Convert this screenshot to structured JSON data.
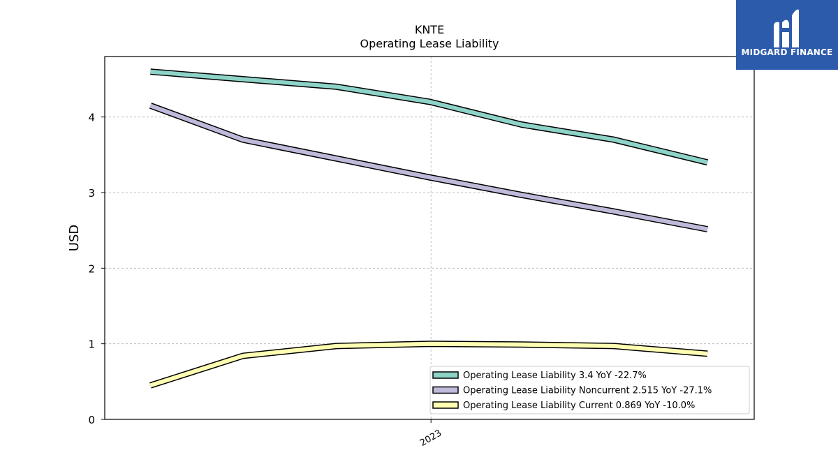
{
  "brand": {
    "name": "MIDGARD FINANCE",
    "color": "#2d5bab"
  },
  "chart_data": {
    "type": "line",
    "title": "KNTE",
    "subtitle": "Operating Lease Liability",
    "ylabel": "USD",
    "xlabel": "",
    "ylim": [
      0,
      4.8
    ],
    "yticks": [
      0,
      1,
      2,
      3,
      4
    ],
    "xtick_labels": [
      "2023"
    ],
    "grid": true,
    "legend_position": "lower-right",
    "x": [
      "2022-03-31",
      "2022-06-30",
      "2022-09-30",
      "2022-12-31",
      "2023-03-31",
      "2023-06-30",
      "2023-09-30"
    ],
    "series": [
      {
        "name": "Operating Lease Liability",
        "legend_label": "Operating Lease Liability  3.4 YoY -22.7%",
        "color": "#8dd3c7",
        "values": [
          4.6,
          4.5,
          4.4,
          4.2,
          3.9,
          3.7,
          3.4
        ]
      },
      {
        "name": "Operating Lease Liability Noncurrent",
        "legend_label": "Operating Lease Liability Noncurrent  2.515 YoY -27.1%",
        "color": "#bebada",
        "values": [
          4.15,
          3.7,
          3.45,
          3.2,
          2.97,
          2.75,
          2.515
        ]
      },
      {
        "name": "Operating Lease Liability Current",
        "legend_label": "Operating Lease Liability Current  0.869 YoY -10.0%",
        "color": "#ffffb3",
        "values": [
          0.45,
          0.84,
          0.97,
          1.0,
          0.99,
          0.97,
          0.869
        ]
      }
    ]
  }
}
